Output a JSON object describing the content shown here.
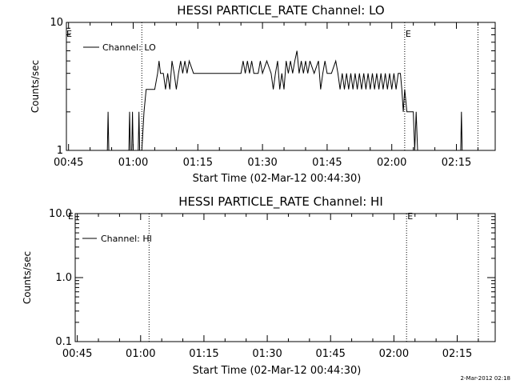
{
  "chart_data": [
    {
      "type": "line",
      "title": "HESSI PARTICLE_RATE Channel: LO",
      "xlabel": "Start Time (02-Mar-12 00:44:30)",
      "ylabel": "Counts/sec",
      "x_ticks": [
        "00:45",
        "01:00",
        "01:15",
        "01:30",
        "01:45",
        "02:00",
        "02:15"
      ],
      "y_scale": "log",
      "ylim": [
        1,
        10
      ],
      "y_tick_labels": [
        "1",
        "10"
      ],
      "legend": "Channel: LO",
      "legend_position": "top-left",
      "markers": [
        {
          "label": "",
          "time": "01:02"
        },
        {
          "label": "E",
          "time": "02:03"
        },
        {
          "label": "",
          "time": "02:20"
        }
      ],
      "edge_marker": "E",
      "series": [
        {
          "name": "Channel: LO",
          "points": [
            [
              "00:54:00",
              1
            ],
            [
              "00:54:10",
              2
            ],
            [
              "00:54:20",
              1
            ],
            [
              "00:59:00",
              1
            ],
            [
              "00:59:10",
              2
            ],
            [
              "00:59:20",
              1
            ],
            [
              "00:59:40",
              1
            ],
            [
              "00:59:50",
              2
            ],
            [
              "01:00:00",
              1
            ],
            [
              "01:01:10",
              1
            ],
            [
              "01:01:20",
              2
            ],
            [
              "01:01:30",
              1
            ],
            [
              "01:02:00",
              1
            ],
            [
              "01:02:30",
              2
            ],
            [
              "01:03:00",
              3
            ],
            [
              "01:05:00",
              3
            ],
            [
              "01:05:40",
              4
            ],
            [
              "01:06:00",
              5
            ],
            [
              "01:06:20",
              4
            ],
            [
              "01:07:00",
              4
            ],
            [
              "01:07:30",
              3
            ],
            [
              "01:08:00",
              4
            ],
            [
              "01:08:30",
              3
            ],
            [
              "01:09:00",
              5
            ],
            [
              "01:09:30",
              4
            ],
            [
              "01:10:00",
              3
            ],
            [
              "01:10:30",
              4
            ],
            [
              "01:11:00",
              5
            ],
            [
              "01:11:30",
              4
            ],
            [
              "01:12:00",
              5
            ],
            [
              "01:12:30",
              4
            ],
            [
              "01:13:00",
              5
            ],
            [
              "01:14:00",
              4
            ],
            [
              "01:16:00",
              4
            ],
            [
              "01:20:00",
              4
            ],
            [
              "01:25:00",
              4
            ],
            [
              "01:25:30",
              5
            ],
            [
              "01:26:00",
              4
            ],
            [
              "01:26:30",
              5
            ],
            [
              "01:27:00",
              4
            ],
            [
              "01:27:30",
              5
            ],
            [
              "01:28:00",
              4
            ],
            [
              "01:29:00",
              4
            ],
            [
              "01:29:30",
              5
            ],
            [
              "01:30:00",
              4
            ],
            [
              "01:31:00",
              5
            ],
            [
              "01:32:00",
              4
            ],
            [
              "01:32:30",
              3
            ],
            [
              "01:33:00",
              4
            ],
            [
              "01:33:30",
              5
            ],
            [
              "01:34:00",
              3
            ],
            [
              "01:34:30",
              4
            ],
            [
              "01:35:00",
              3
            ],
            [
              "01:35:30",
              5
            ],
            [
              "01:36:00",
              4
            ],
            [
              "01:36:30",
              5
            ],
            [
              "01:37:00",
              4
            ],
            [
              "01:37:30",
              5
            ],
            [
              "01:38:00",
              6
            ],
            [
              "01:38:30",
              4
            ],
            [
              "01:39:00",
              5
            ],
            [
              "01:39:30",
              4
            ],
            [
              "01:40:00",
              5
            ],
            [
              "01:40:30",
              4
            ],
            [
              "01:41:00",
              5
            ],
            [
              "01:42:00",
              4
            ],
            [
              "01:43:00",
              5
            ],
            [
              "01:43:30",
              3
            ],
            [
              "01:44:00",
              4
            ],
            [
              "01:44:30",
              5
            ],
            [
              "01:45:00",
              4
            ],
            [
              "01:46:00",
              4
            ],
            [
              "01:47:00",
              5
            ],
            [
              "01:47:30",
              4
            ],
            [
              "01:48:00",
              3
            ],
            [
              "01:48:30",
              4
            ],
            [
              "01:49:00",
              3
            ],
            [
              "01:49:30",
              4
            ],
            [
              "01:50:00",
              3
            ],
            [
              "01:50:30",
              4
            ],
            [
              "01:51:00",
              3
            ],
            [
              "01:51:30",
              4
            ],
            [
              "01:52:00",
              3
            ],
            [
              "01:52:30",
              4
            ],
            [
              "01:53:00",
              3
            ],
            [
              "01:53:30",
              4
            ],
            [
              "01:54:00",
              3
            ],
            [
              "01:54:30",
              4
            ],
            [
              "01:55:00",
              3
            ],
            [
              "01:55:30",
              4
            ],
            [
              "01:56:00",
              3
            ],
            [
              "01:56:30",
              4
            ],
            [
              "01:57:00",
              3
            ],
            [
              "01:57:30",
              4
            ],
            [
              "01:58:00",
              3
            ],
            [
              "01:58:30",
              4
            ],
            [
              "01:59:00",
              3
            ],
            [
              "01:59:30",
              4
            ],
            [
              "02:00:00",
              3
            ],
            [
              "02:00:30",
              4
            ],
            [
              "02:01:00",
              3
            ],
            [
              "02:01:30",
              4
            ],
            [
              "02:02:00",
              4
            ],
            [
              "02:02:20",
              3
            ],
            [
              "02:02:40",
              2
            ],
            [
              "02:03:00",
              3
            ],
            [
              "02:03:30",
              2
            ],
            [
              "02:05:00",
              2
            ],
            [
              "02:05:20",
              1
            ],
            [
              "02:05:40",
              2
            ],
            [
              "02:06:00",
              1
            ],
            [
              "02:16:00",
              1
            ],
            [
              "02:16:10",
              2
            ],
            [
              "02:16:20",
              1
            ]
          ]
        }
      ]
    },
    {
      "type": "line",
      "title": "HESSI PARTICLE_RATE Channel: HI",
      "xlabel": "Start Time (02-Mar-12 00:44:30)",
      "ylabel": "Counts/sec",
      "x_ticks": [
        "00:45",
        "01:00",
        "01:15",
        "01:30",
        "01:45",
        "02:00",
        "02:15"
      ],
      "y_scale": "log",
      "ylim": [
        0.1,
        10
      ],
      "y_tick_labels": [
        "0.1",
        "1.0",
        "10.0"
      ],
      "legend": "Channel: HI",
      "legend_position": "top-left",
      "markers": [
        {
          "label": "",
          "time": "01:02"
        },
        {
          "label": "E",
          "time": "02:03"
        },
        {
          "label": "",
          "time": "02:20"
        }
      ],
      "edge_marker": "E",
      "series": [
        {
          "name": "Channel: HI",
          "points": []
        }
      ]
    }
  ],
  "timestamp": "2-Mar-2012 02:18"
}
